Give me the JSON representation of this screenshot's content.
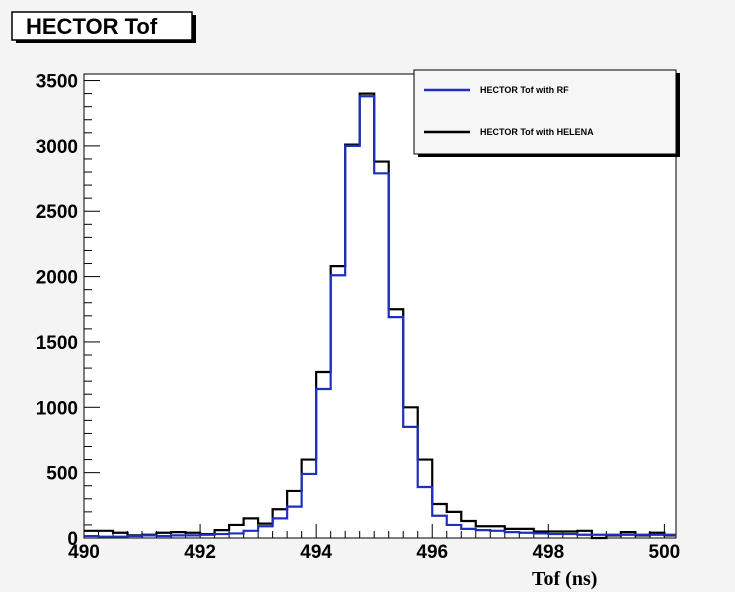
{
  "chart_data": {
    "type": "histogram",
    "title": "HECTOR Tof",
    "xlabel": "Tof (ns)",
    "ylabel": "",
    "xlim": [
      490,
      500.2
    ],
    "ylim": [
      0,
      3550
    ],
    "x_ticks": [
      490,
      492,
      494,
      496,
      498,
      500
    ],
    "y_ticks": [
      0,
      500,
      1000,
      1500,
      2000,
      2500,
      3000,
      3500
    ],
    "bin_edges": [
      490.0,
      490.25,
      490.5,
      490.75,
      491.0,
      491.25,
      491.5,
      491.75,
      492.0,
      492.25,
      492.5,
      492.75,
      493.0,
      493.25,
      493.5,
      493.75,
      494.0,
      494.25,
      494.5,
      494.75,
      495.0,
      495.25,
      495.5,
      495.75,
      496.0,
      496.25,
      496.5,
      496.75,
      497.0,
      497.25,
      497.5,
      497.75,
      498.0,
      498.25,
      498.5,
      498.75,
      499.0,
      499.25,
      499.5,
      499.75,
      500.0,
      500.2
    ],
    "legend_position": "top-right",
    "grid": false,
    "series": [
      {
        "name": "HECTOR Tof with RF",
        "color": "#1f2fbf",
        "values": [
          15,
          10,
          10,
          15,
          20,
          15,
          20,
          20,
          25,
          30,
          35,
          55,
          90,
          150,
          240,
          490,
          1140,
          2010,
          3000,
          3380,
          2790,
          1690,
          850,
          390,
          170,
          100,
          70,
          60,
          55,
          45,
          40,
          35,
          30,
          30,
          25,
          25,
          25,
          25,
          25,
          25,
          25
        ]
      },
      {
        "name": "HECTOR Tof with HELENA",
        "color": "#000000",
        "values": [
          55,
          55,
          40,
          20,
          25,
          40,
          45,
          40,
          30,
          60,
          100,
          150,
          110,
          220,
          360,
          600,
          1270,
          2080,
          3010,
          3400,
          2880,
          1750,
          1000,
          600,
          260,
          200,
          130,
          90,
          90,
          70,
          70,
          50,
          50,
          50,
          55,
          0,
          20,
          45,
          20,
          40,
          20
        ]
      }
    ]
  }
}
